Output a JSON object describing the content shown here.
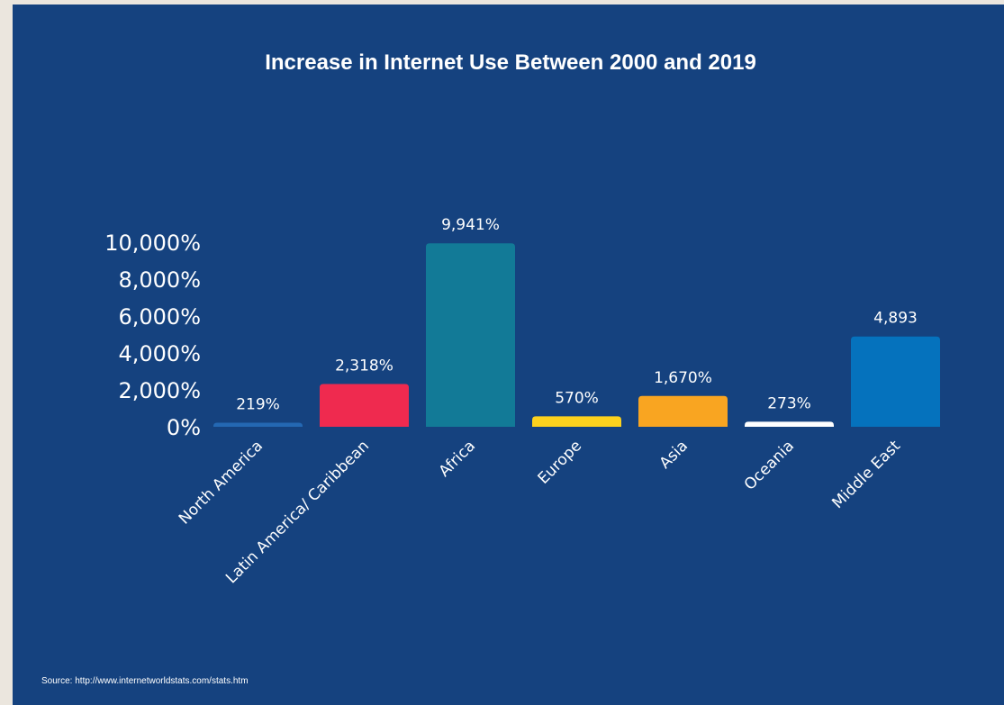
{
  "chart_data": {
    "type": "bar",
    "title": "Increase in Internet Use Between 2000 and 2019",
    "categories": [
      "North America",
      "Latin America/ Caribbean",
      "Africa",
      "Europe",
      "Asia",
      "Oceania",
      "Middle East"
    ],
    "values": [
      219,
      2318,
      9941,
      570,
      1670,
      273,
      4893
    ],
    "value_labels": [
      "219%",
      "2,318%",
      "9,941%",
      "570%",
      "1,670%",
      "273%",
      "4,893"
    ],
    "colors": [
      "#2468b3",
      "#ef2a4f",
      "#127a97",
      "#fcd21e",
      "#f9a521",
      "#ffffff",
      "#0572bd"
    ],
    "ylim": [
      0,
      10000
    ],
    "yticks": [
      {
        "value": 0,
        "label": "0%"
      },
      {
        "value": 2000,
        "label": "2,000%"
      },
      {
        "value": 4000,
        "label": "4,000%"
      },
      {
        "value": 6000,
        "label": "6,000%"
      },
      {
        "value": 8000,
        "label": "8,000%"
      },
      {
        "value": 10000,
        "label": "10,000%"
      }
    ],
    "xlabel": "",
    "ylabel": "",
    "grid": false,
    "legend": "none",
    "background": "#15427f"
  },
  "source": "Source: http://www.internetworldstats.com/stats.htm"
}
